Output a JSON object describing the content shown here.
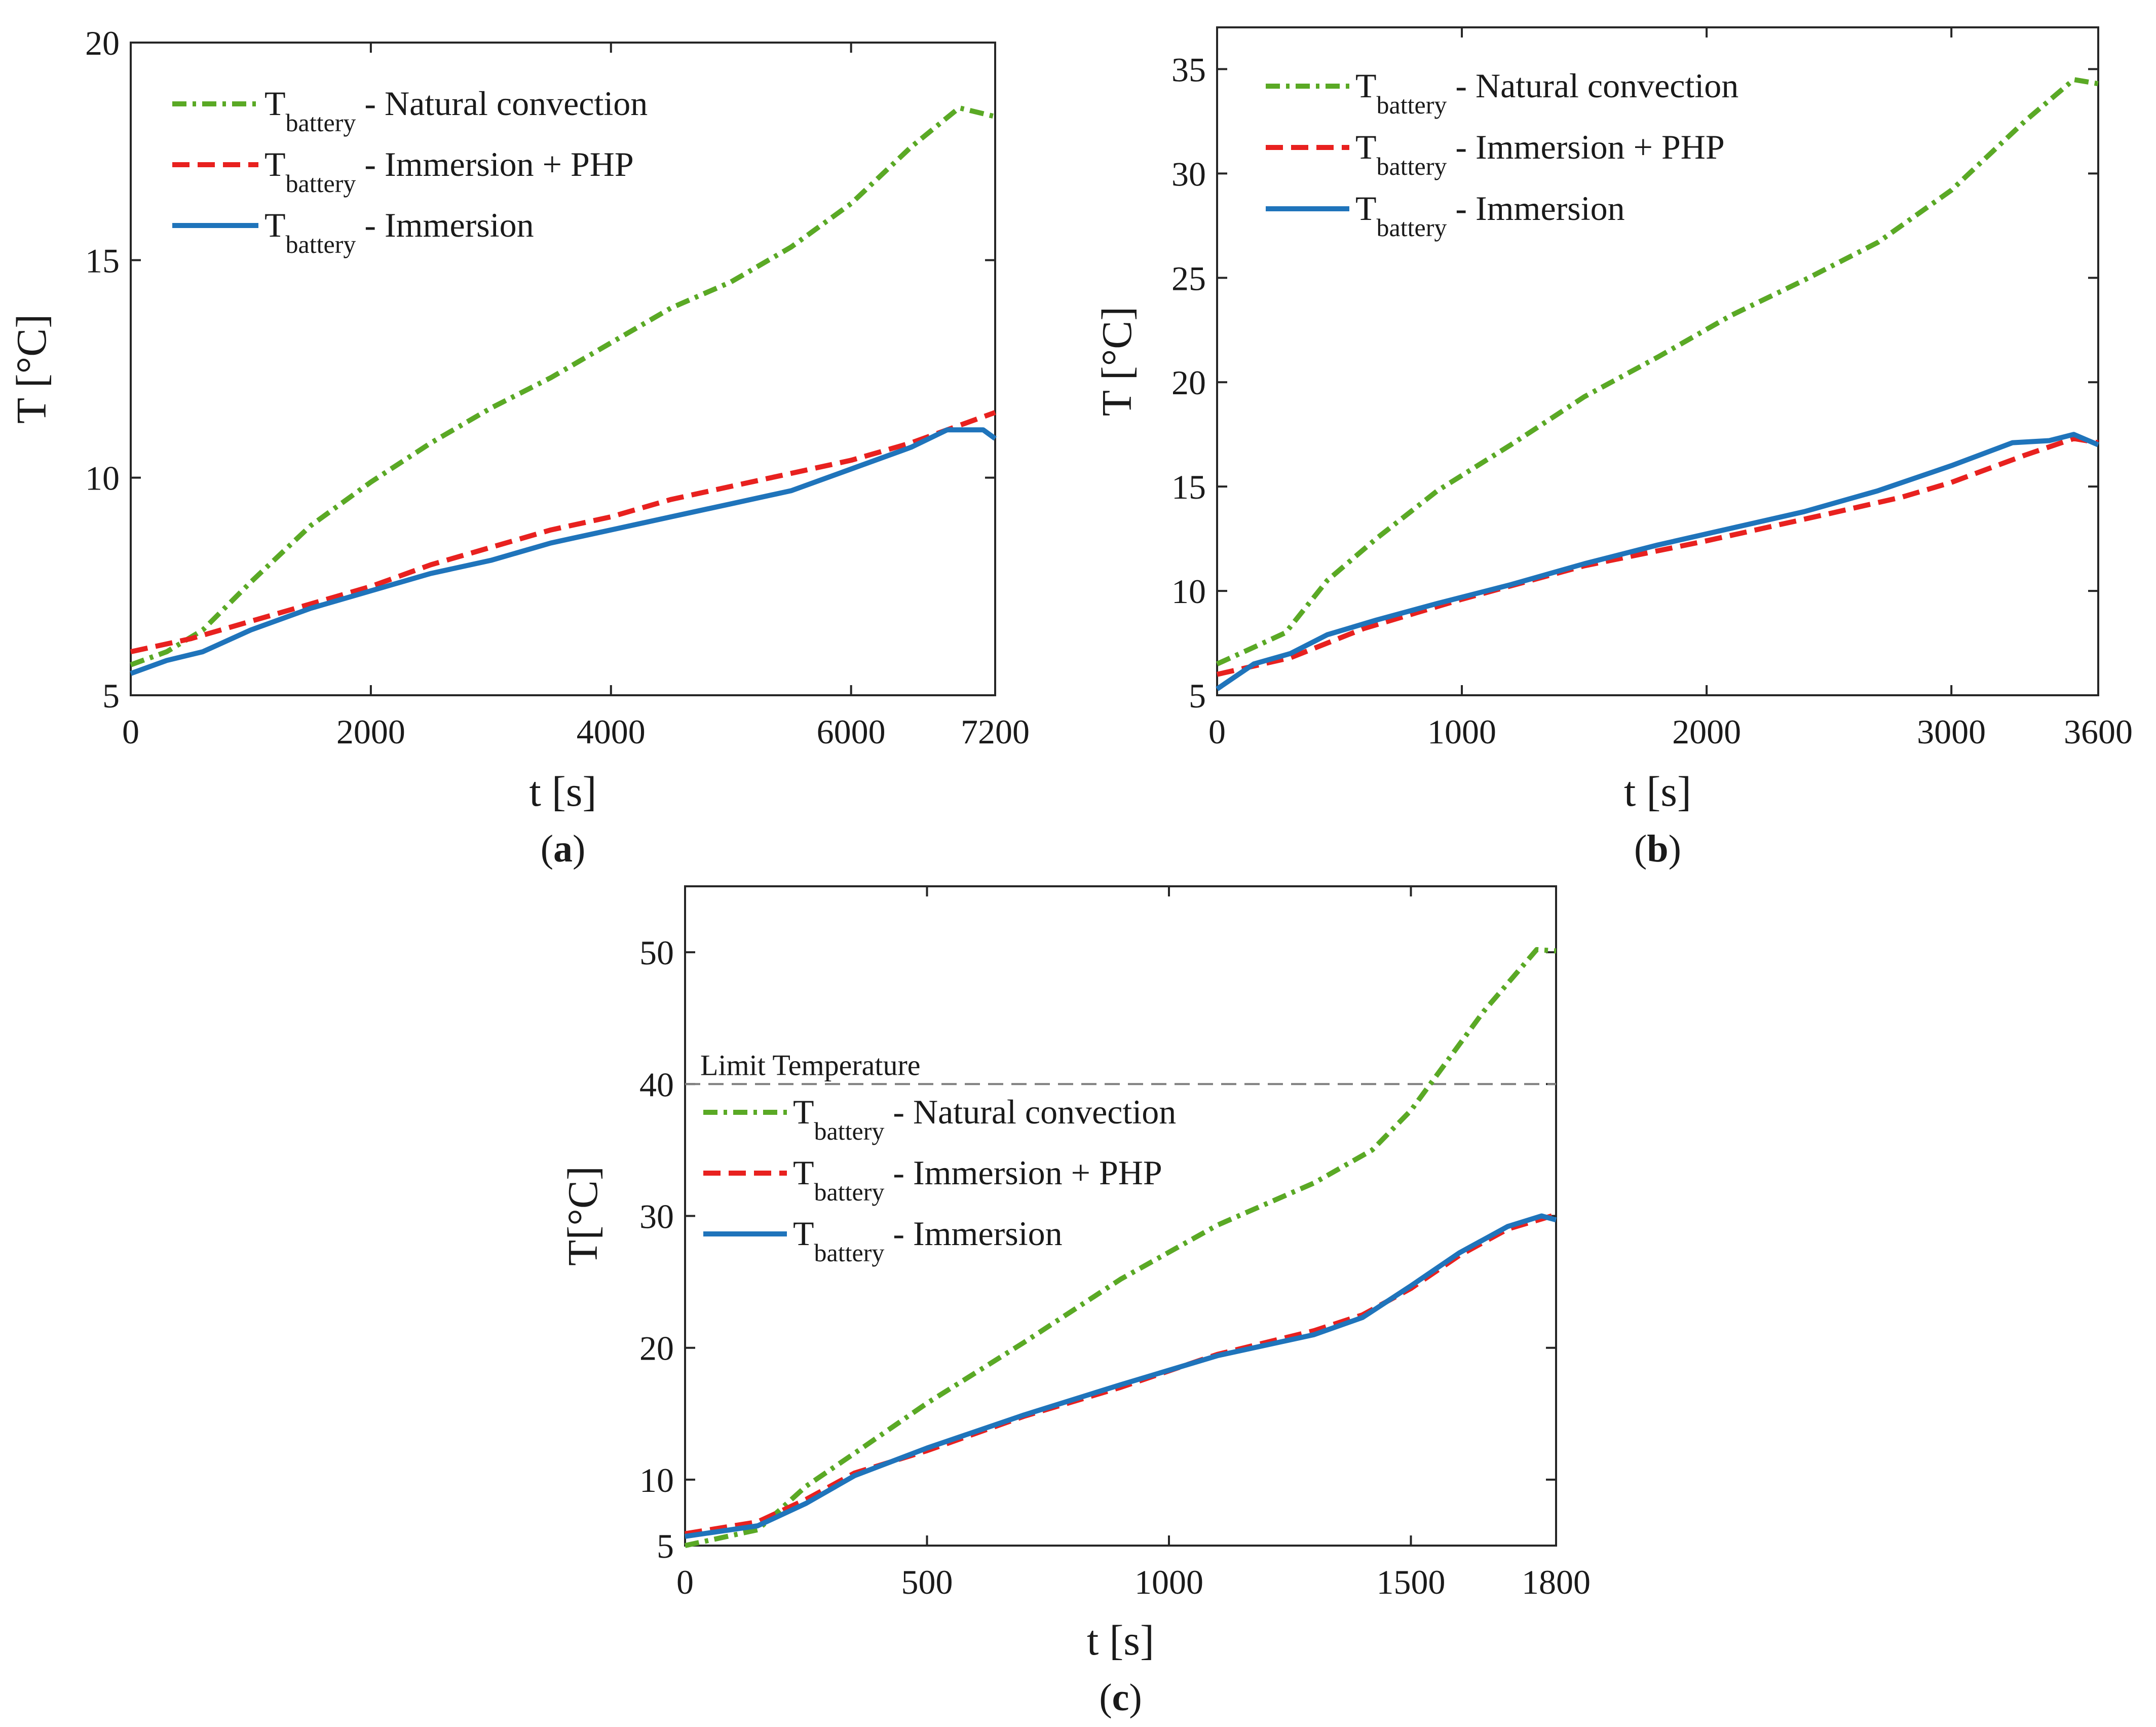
{
  "chart_data": [
    {
      "type": "line",
      "id": "a",
      "caption_letter": "a",
      "xlabel": "t [s]",
      "ylabel": "T [°C]",
      "xlim": [
        0,
        7200
      ],
      "ylim": [
        5,
        20
      ],
      "xticks": [
        0,
        2000,
        4000,
        6000,
        7200
      ],
      "yticks": [
        5,
        10,
        15,
        20
      ],
      "grid": false,
      "legend_position": "top-left",
      "series": [
        {
          "name_main": "T",
          "name_sub": "battery",
          "name_rest": " - Natural convection",
          "color": "#5aa925",
          "dash": "dashdot",
          "x": [
            0,
            300,
            600,
            1000,
            1500,
            2000,
            2500,
            3000,
            3500,
            4000,
            4500,
            5000,
            5500,
            6000,
            6500,
            6900,
            7200
          ],
          "y": [
            5.7,
            6.0,
            6.5,
            7.6,
            8.9,
            9.9,
            10.8,
            11.6,
            12.3,
            13.1,
            13.9,
            14.5,
            15.3,
            16.3,
            17.6,
            18.5,
            18.3
          ]
        },
        {
          "name_main": "T",
          "name_sub": "battery",
          "name_rest": " - Immersion + PHP",
          "color": "#e8211f",
          "dash": "dashed",
          "x": [
            0,
            500,
            1000,
            1500,
            2000,
            2500,
            3000,
            3500,
            4000,
            4500,
            5000,
            5500,
            6000,
            6500,
            7200
          ],
          "y": [
            6.0,
            6.3,
            6.7,
            7.1,
            7.5,
            8.0,
            8.4,
            8.8,
            9.1,
            9.5,
            9.8,
            10.1,
            10.4,
            10.8,
            11.5
          ]
        },
        {
          "name_main": "T",
          "name_sub": "battery",
          "name_rest": " - Immersion",
          "color": "#1f74bb",
          "dash": "solid",
          "x": [
            0,
            300,
            600,
            1000,
            1500,
            2000,
            2500,
            3000,
            3500,
            4000,
            4500,
            5000,
            5500,
            6000,
            6500,
            6800,
            7100,
            7200
          ],
          "y": [
            5.5,
            5.8,
            6.0,
            6.5,
            7.0,
            7.4,
            7.8,
            8.1,
            8.5,
            8.8,
            9.1,
            9.4,
            9.7,
            10.2,
            10.7,
            11.1,
            11.1,
            10.9
          ]
        }
      ]
    },
    {
      "type": "line",
      "id": "b",
      "caption_letter": "b",
      "xlabel": "t [s]",
      "ylabel": "T [°C]",
      "xlim": [
        0,
        3600
      ],
      "ylim": [
        5,
        37
      ],
      "xticks": [
        0,
        1000,
        2000,
        3000,
        3600
      ],
      "yticks": [
        5,
        10,
        15,
        20,
        25,
        30,
        35
      ],
      "grid": false,
      "legend_position": "top-left",
      "series": [
        {
          "name_main": "T",
          "name_sub": "battery",
          "name_rest": " - Natural convection",
          "color": "#5aa925",
          "dash": "dashdot",
          "x": [
            0,
            150,
            280,
            450,
            650,
            900,
            1200,
            1500,
            1800,
            2100,
            2400,
            2700,
            3000,
            3300,
            3500,
            3600
          ],
          "y": [
            6.5,
            7.3,
            8.0,
            10.5,
            12.5,
            14.8,
            17.0,
            19.3,
            21.2,
            23.2,
            24.9,
            26.7,
            29.2,
            32.5,
            34.5,
            34.3
          ]
        },
        {
          "name_main": "T",
          "name_sub": "battery",
          "name_rest": " - Immersion + PHP",
          "color": "#e8211f",
          "dash": "dashed",
          "x": [
            0,
            300,
            600,
            1000,
            1500,
            2000,
            2500,
            2800,
            3000,
            3300,
            3500,
            3600
          ],
          "y": [
            6.0,
            6.8,
            8.2,
            9.6,
            11.2,
            12.4,
            13.7,
            14.5,
            15.2,
            16.5,
            17.3,
            17.1
          ]
        },
        {
          "name_main": "T",
          "name_sub": "battery",
          "name_rest": " - Immersion",
          "color": "#1f74bb",
          "dash": "solid",
          "x": [
            0,
            150,
            300,
            450,
            650,
            900,
            1200,
            1500,
            1800,
            2100,
            2400,
            2700,
            3000,
            3250,
            3400,
            3500,
            3600
          ],
          "y": [
            5.3,
            6.5,
            7.0,
            7.9,
            8.6,
            9.4,
            10.3,
            11.3,
            12.2,
            13.0,
            13.8,
            14.8,
            16.0,
            17.1,
            17.2,
            17.5,
            17.0
          ]
        }
      ]
    },
    {
      "type": "line",
      "id": "c",
      "caption_letter": "c",
      "xlabel": "t [s]",
      "ylabel": "T[°C]",
      "xlim": [
        0,
        1800
      ],
      "ylim": [
        5,
        55
      ],
      "xticks": [
        0,
        500,
        1000,
        1500,
        1800
      ],
      "yticks": [
        5,
        10,
        20,
        30,
        40,
        50
      ],
      "grid": false,
      "legend_position": "top-left",
      "annotation": {
        "label": "Limit Temperature",
        "y": 40,
        "color": "#7f7f7f"
      },
      "series": [
        {
          "name_main": "T",
          "name_sub": "battery",
          "name_rest": " - Natural convection",
          "color": "#5aa925",
          "dash": "dashdot",
          "x": [
            0,
            150,
            250,
            350,
            500,
            700,
            900,
            1100,
            1300,
            1420,
            1500,
            1560,
            1650,
            1760,
            1800
          ],
          "y": [
            5.0,
            6.2,
            9.5,
            12.0,
            15.8,
            20.4,
            25.2,
            29.3,
            32.5,
            35.0,
            38.0,
            41.0,
            45.5,
            50.2,
            50.1
          ]
        },
        {
          "name_main": "T",
          "name_sub": "battery",
          "name_rest": " - Immersion + PHP",
          "color": "#e8211f",
          "dash": "dashed",
          "x": [
            0,
            150,
            250,
            350,
            500,
            700,
            900,
            1100,
            1300,
            1400,
            1500,
            1600,
            1700,
            1800
          ],
          "y": [
            5.9,
            6.8,
            8.5,
            10.5,
            12.2,
            14.8,
            17.0,
            19.5,
            21.3,
            22.5,
            24.5,
            27.0,
            29.0,
            30.1
          ]
        },
        {
          "name_main": "T",
          "name_sub": "battery",
          "name_rest": " - Immersion",
          "color": "#1f74bb",
          "dash": "solid",
          "x": [
            0,
            150,
            250,
            350,
            500,
            700,
            900,
            1100,
            1300,
            1400,
            1500,
            1600,
            1700,
            1770,
            1800
          ],
          "y": [
            5.7,
            6.5,
            8.2,
            10.3,
            12.4,
            14.9,
            17.2,
            19.4,
            21.0,
            22.3,
            24.7,
            27.2,
            29.2,
            30.0,
            29.7
          ]
        }
      ]
    }
  ]
}
